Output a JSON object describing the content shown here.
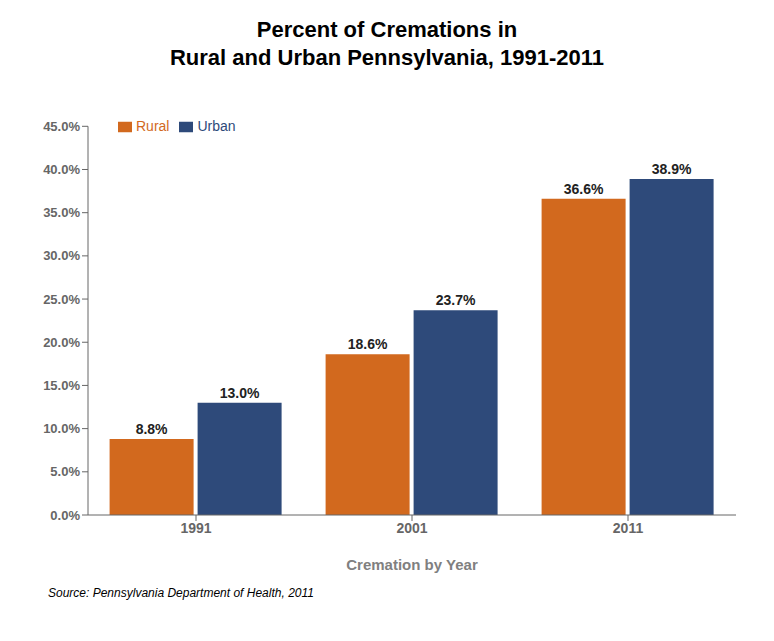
{
  "chart_data": {
    "type": "bar",
    "title": "Percent of Cremations in\nRural and Urban Pennsylvania, 1991-2011",
    "xlabel": "Cremation by Year",
    "annotation": "Source: Pennsylvania Department of Health, 2011",
    "categories": [
      "1991",
      "2001",
      "2011"
    ],
    "series": [
      {
        "name": "Rural",
        "color": "#D2691E",
        "values": [
          8.8,
          18.6,
          36.6
        ],
        "value_labels": [
          "8.8%",
          "18.6%",
          "36.6%"
        ]
      },
      {
        "name": "Urban",
        "color": "#2E4A7A",
        "values": [
          13.0,
          23.7,
          38.9
        ],
        "value_labels": [
          "13.0%",
          "23.7%",
          "38.9%"
        ]
      }
    ],
    "ylim": [
      0,
      45
    ],
    "yticks": [
      {
        "value": 0,
        "label": "0.0%"
      },
      {
        "value": 5,
        "label": "5.0%"
      },
      {
        "value": 10,
        "label": "10.0%"
      },
      {
        "value": 15,
        "label": "15.0%"
      },
      {
        "value": 20,
        "label": "20.0%"
      },
      {
        "value": 25,
        "label": "25.0%"
      },
      {
        "value": 30,
        "label": "30.0%"
      },
      {
        "value": 35,
        "label": "35.0%"
      },
      {
        "value": 40,
        "label": "40.0%"
      },
      {
        "value": 45,
        "label": "45.0%"
      }
    ],
    "data_labels": true,
    "legend": "upper left",
    "grid": false
  }
}
